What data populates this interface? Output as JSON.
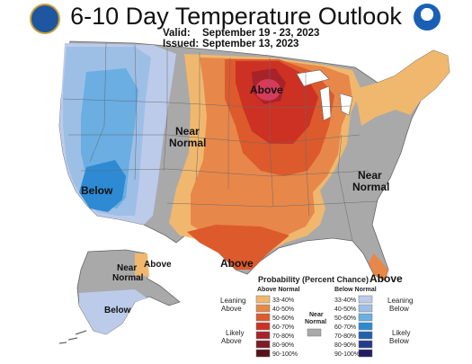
{
  "header": {
    "title": "6-10 Day Temperature Outlook",
    "valid_label": "Valid:",
    "valid_dates": "September 19 - 23, 2023",
    "issued_label": "Issued:",
    "issued_date": "September 13, 2023"
  },
  "map_labels": {
    "above_midwest": "Above",
    "near_normal_plains_1": "Near",
    "near_normal_plains_2": "Normal",
    "below_west": "Below",
    "near_normal_east_1": "Near",
    "near_normal_east_2": "Normal",
    "above_texas": "Above",
    "above_florida": "Above",
    "alaska_near_1": "Near",
    "alaska_near_2": "Normal",
    "alaska_above": "Above",
    "alaska_below": "Below"
  },
  "legend": {
    "title": "Probability (Percent Chance)",
    "above_header": "Above Normal",
    "below_header": "Below Normal",
    "near_header_1": "Near",
    "near_header_2": "Normal",
    "leaning_above_1": "Leaning",
    "leaning_above_2": "Above",
    "likely_above_1": "Likely",
    "likely_above_2": "Above",
    "leaning_below_1": "Leaning",
    "leaning_below_2": "Below",
    "likely_below_1": "Likely",
    "likely_below_2": "Below",
    "above_bins": [
      {
        "label": "33-40%",
        "color": "#f0b86e"
      },
      {
        "label": "40-50%",
        "color": "#e8874a"
      },
      {
        "label": "50-60%",
        "color": "#dd5a2c"
      },
      {
        "label": "60-70%",
        "color": "#cc3123"
      },
      {
        "label": "70-80%",
        "color": "#a8222a"
      },
      {
        "label": "80-90%",
        "color": "#7d1c24"
      },
      {
        "label": "90-100%",
        "color": "#55121a"
      }
    ],
    "below_bins": [
      {
        "label": "33-40%",
        "color": "#bccbea"
      },
      {
        "label": "40-50%",
        "color": "#9dbfe6"
      },
      {
        "label": "50-60%",
        "color": "#6aaee2"
      },
      {
        "label": "60-70%",
        "color": "#2d8ad3"
      },
      {
        "label": "70-80%",
        "color": "#205fae"
      },
      {
        "label": "80-90%",
        "color": "#243a8c"
      },
      {
        "label": "90-100%",
        "color": "#1f1d64"
      }
    ],
    "near_color": "#a9a9a9"
  },
  "colors": {
    "land_outline": "#666666",
    "water": "#ffffff"
  }
}
